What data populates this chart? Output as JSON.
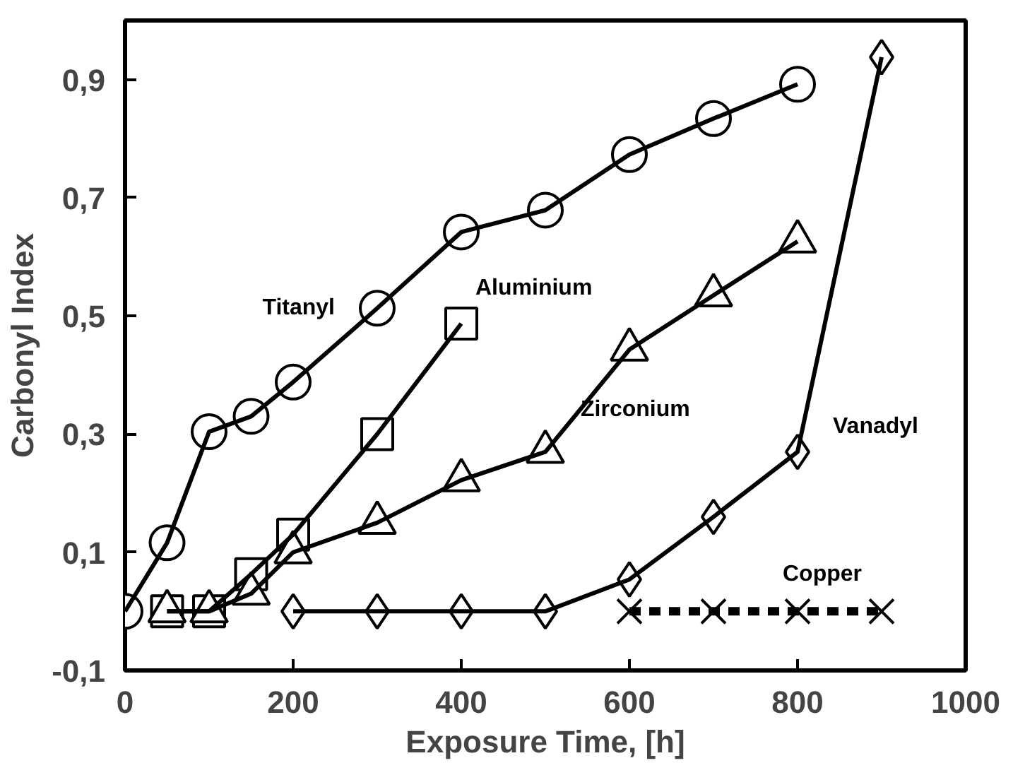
{
  "chart_data": {
    "type": "line",
    "xlabel": "Exposure Time, [h]",
    "ylabel": "Carbonyl Index",
    "xlim": [
      0,
      1000
    ],
    "ylim": [
      -0.1,
      1.0
    ],
    "xticks": [
      0,
      200,
      400,
      600,
      800,
      1000
    ],
    "yticks": [
      {
        "value": -0.1,
        "label": "-0,1"
      },
      {
        "value": 0.1,
        "label": "0,1"
      },
      {
        "value": 0.3,
        "label": "0,3"
      },
      {
        "value": 0.5,
        "label": "0,5"
      },
      {
        "value": 0.7,
        "label": "0,7"
      },
      {
        "value": 0.9,
        "label": "0,9"
      }
    ],
    "grid": false,
    "legend": false,
    "series": [
      {
        "name": "Titanyl",
        "color": "#000000",
        "marker": "circle",
        "line_style": "solid",
        "x": [
          0,
          50,
          100,
          150,
          200,
          300,
          400,
          500,
          600,
          700,
          800
        ],
        "values": [
          0,
          0.116,
          0.304,
          0.33,
          0.388,
          0.513,
          0.642,
          0.679,
          0.773,
          0.834,
          0.892
        ]
      },
      {
        "name": "Zirconium",
        "color": "#000000",
        "marker": "triangle",
        "line_style": "solid",
        "x": [
          50,
          100,
          150,
          200,
          300,
          400,
          500,
          600,
          700,
          800
        ],
        "values": [
          0,
          0,
          0.03,
          0.1,
          0.15,
          0.222,
          0.27,
          0.443,
          0.535,
          0.626
        ]
      },
      {
        "name": "Aluminium",
        "color": "#000000",
        "marker": "square",
        "line_style": "solid",
        "x": [
          50,
          100,
          150,
          200,
          300,
          400
        ],
        "values": [
          0,
          0,
          0.063,
          0.13,
          0.3,
          0.487
        ]
      },
      {
        "name": "Vanadyl",
        "color": "#000000",
        "marker": "diamond",
        "line_style": "solid",
        "x": [
          200,
          300,
          400,
          500,
          600,
          700,
          800,
          900
        ],
        "values": [
          0,
          0,
          0,
          0,
          0.054,
          0.16,
          0.27,
          0.938
        ]
      },
      {
        "name": "Copper",
        "color": "#000000",
        "marker": "cross",
        "line_style": "dashed",
        "x": [
          600,
          700,
          800,
          900
        ],
        "values": [
          0,
          0,
          0,
          0
        ]
      }
    ]
  }
}
